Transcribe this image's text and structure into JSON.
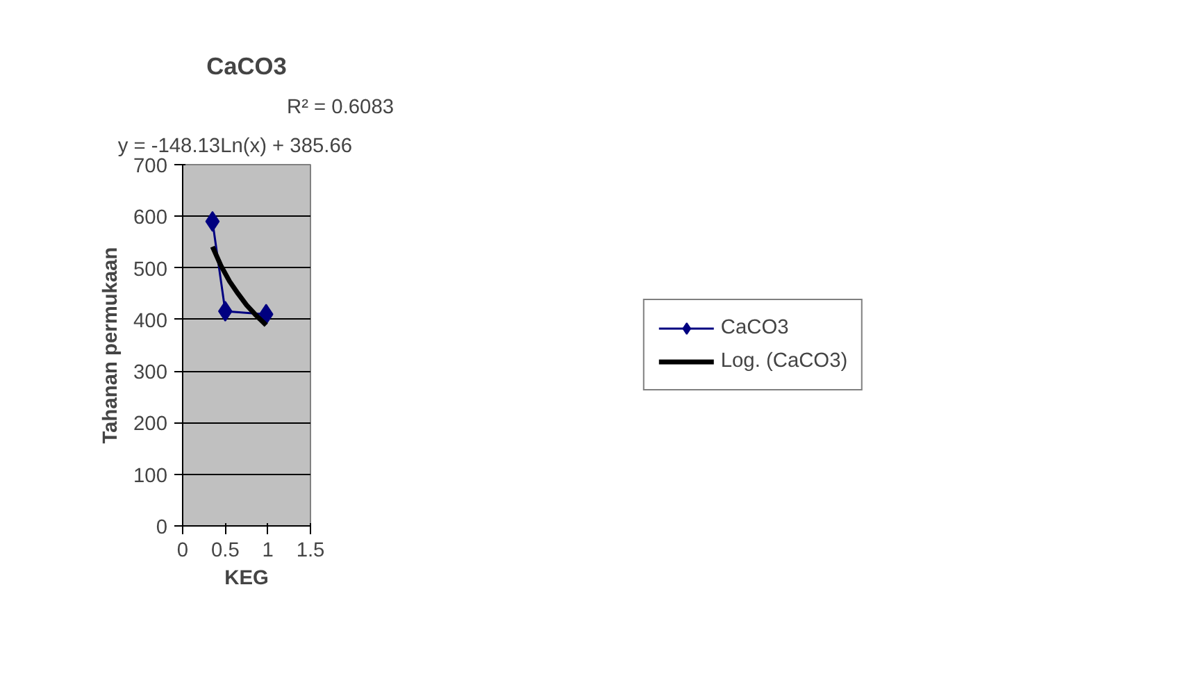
{
  "chart_data": {
    "type": "line",
    "title": "CaCO3",
    "xlabel": "KEG",
    "ylabel": "Tahanan permukaan",
    "annotations": [
      "y = -148.13Ln(x) + 385.66",
      "R² = 0.6083"
    ],
    "xlim": [
      0,
      1.5
    ],
    "xticks": [
      0,
      0.5,
      1,
      1.5
    ],
    "ylim": [
      0,
      700
    ],
    "yticks": [
      0,
      100,
      200,
      300,
      400,
      500,
      600,
      700
    ],
    "grid": "y",
    "legend": "right",
    "series": [
      {
        "name": "CaCO3",
        "marker": "diamond",
        "color": "#000080",
        "x": [
          0.35,
          0.5,
          0.98
        ],
        "values": [
          590,
          416,
          410
        ]
      },
      {
        "name": "Log. (CaCO3)",
        "marker": "none",
        "color": "#000000",
        "x": [
          0.35,
          0.45,
          0.55,
          0.65,
          0.75,
          0.85,
          0.98
        ],
        "values": [
          541,
          504,
          474,
          450,
          428,
          410,
          389
        ]
      }
    ]
  }
}
